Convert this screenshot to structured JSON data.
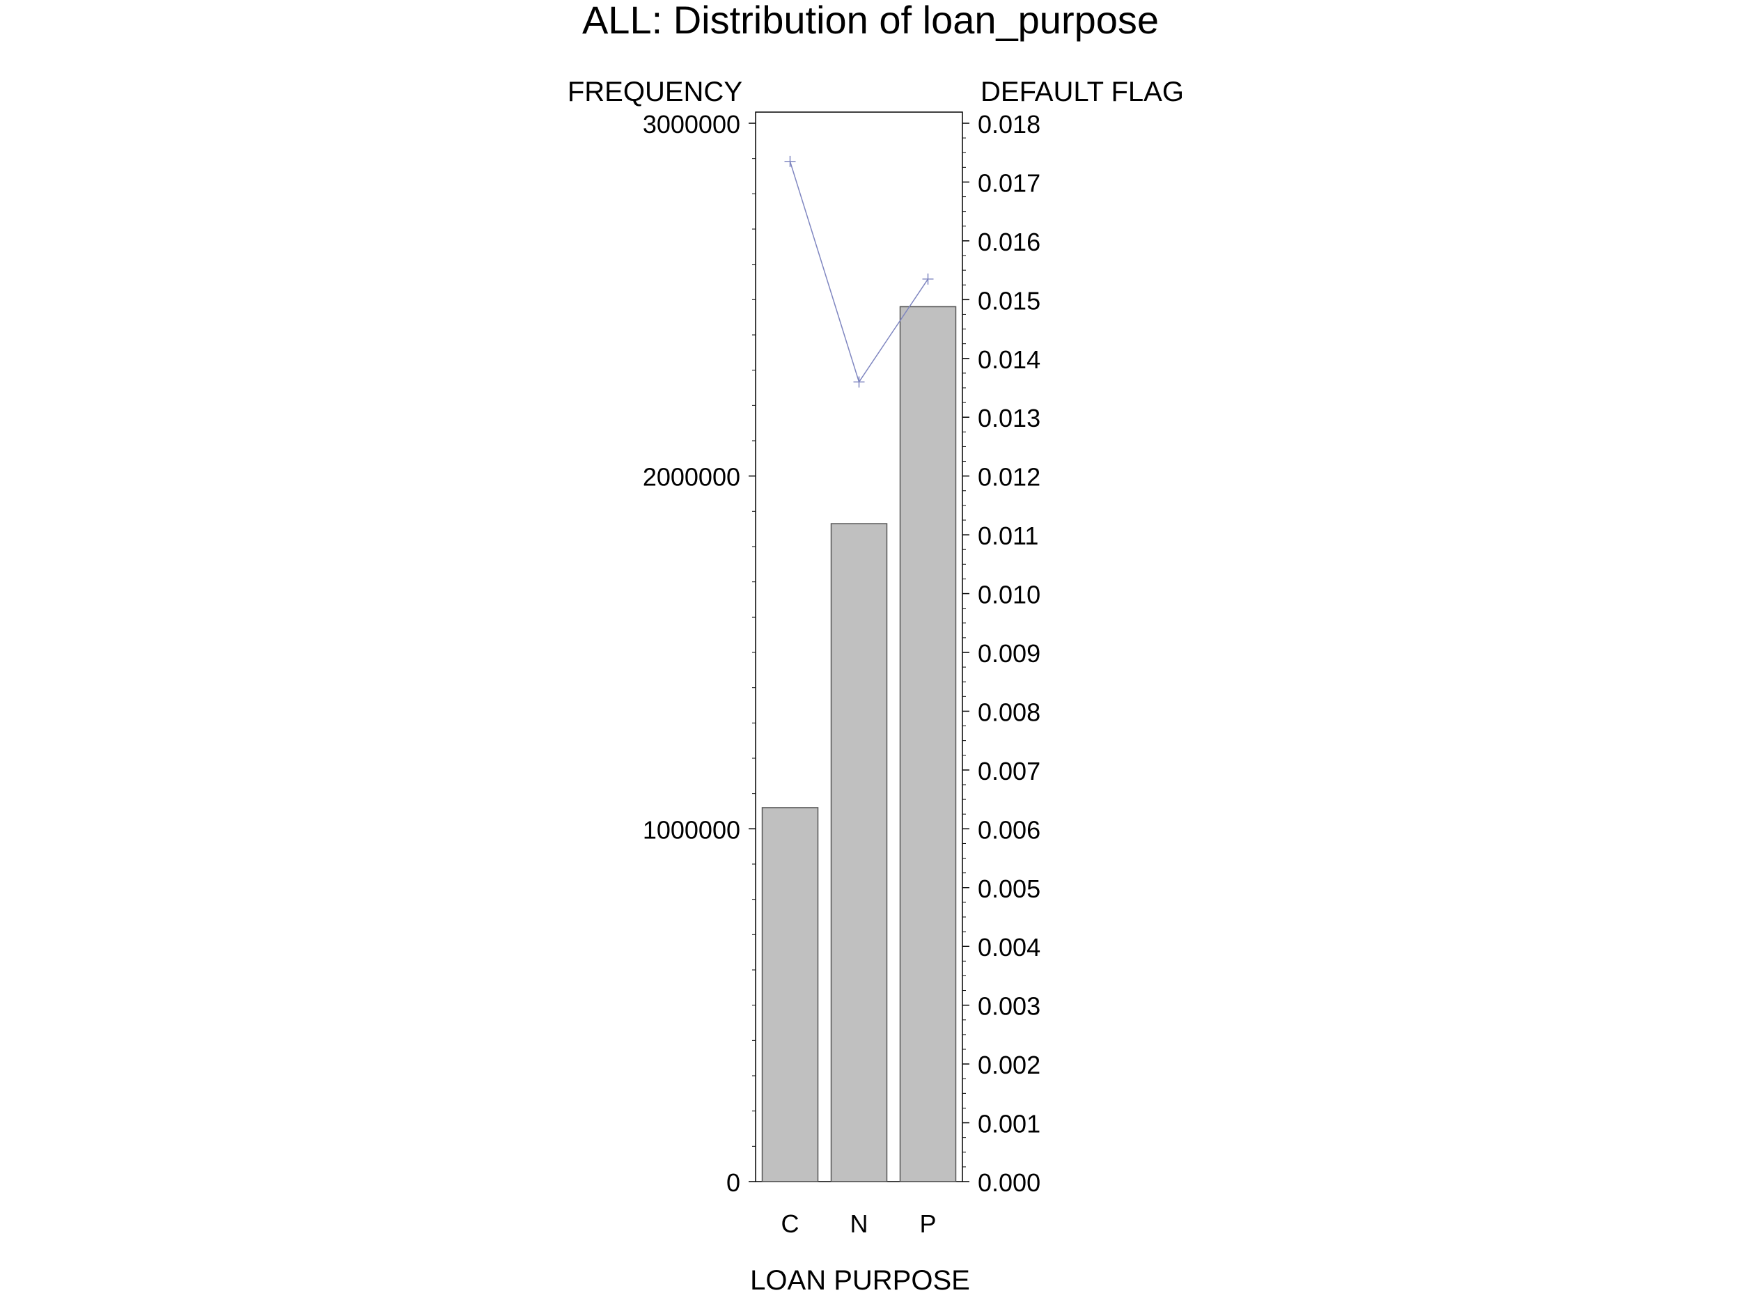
{
  "chart_data": {
    "type": "bar",
    "title": "ALL: Distribution of loan_purpose",
    "xlabel": "LOAN PURPOSE",
    "ylabel": "FREQUENCY",
    "y2label": "DEFAULT FLAG",
    "categories": [
      "C",
      "N",
      "P"
    ],
    "series": [
      {
        "type": "bar",
        "axis": "left",
        "values": [
          1060000,
          1865000,
          2480000
        ]
      },
      {
        "type": "line",
        "axis": "right",
        "marker": "plus",
        "values": [
          0.01735,
          0.0136,
          0.01535
        ]
      }
    ],
    "ylim": [
      0,
      3000000
    ],
    "yticks": [
      "0",
      "1000000",
      "2000000",
      "3000000"
    ],
    "y2lim": [
      0,
      0.018
    ],
    "y2ticks": [
      "0.000",
      "0.001",
      "0.002",
      "0.003",
      "0.004",
      "0.005",
      "0.006",
      "0.007",
      "0.008",
      "0.009",
      "0.010",
      "0.011",
      "0.012",
      "0.013",
      "0.014",
      "0.015",
      "0.016",
      "0.017",
      "0.018"
    ],
    "grid": false,
    "colors": {
      "bar_fill": "#c0c0c0",
      "bar_stroke": "#555555",
      "line": "#7f86c0",
      "axis": "#000000"
    }
  }
}
